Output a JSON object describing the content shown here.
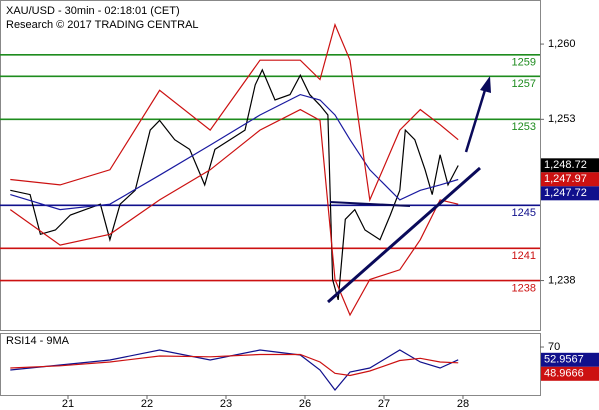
{
  "chart_data": {
    "type": "line",
    "title": "XAU/USD - 30min - 02:18:01 (CET)",
    "subtitle": "Research © 2017 TRADING CENTRAL",
    "xlim": [
      -0.861,
      5.975
    ],
    "xticks": [
      {
        "value": 0,
        "label": "21"
      },
      {
        "value": 1,
        "label": "22"
      },
      {
        "value": 2,
        "label": "23"
      },
      {
        "value": 3,
        "label": "26"
      },
      {
        "value": 4,
        "label": "27"
      },
      {
        "value": 5,
        "label": "28"
      }
    ],
    "ylim": [
      1233.4,
      1264.1
    ],
    "yticks": [
      {
        "value": 1260,
        "label": "1,260"
      },
      {
        "value": 1253,
        "label": "1,253"
      },
      {
        "value": 1238,
        "label": "1,238"
      }
    ],
    "series": [
      {
        "color": "#000000",
        "x": [
          -0.73,
          -0.48,
          -0.35,
          -0.16,
          0.03,
          0.22,
          0.41,
          0.53,
          0.66,
          0.85,
          1.04,
          1.16,
          1.35,
          1.54,
          1.73,
          1.86,
          2.05,
          2.24,
          2.37,
          2.46,
          2.62,
          2.81,
          2.94,
          3.06,
          3.19,
          3.29,
          3.35,
          3.42,
          3.51,
          3.63,
          3.76,
          3.95,
          4.08,
          4.2,
          4.27,
          4.39,
          4.52,
          4.61,
          4.71,
          4.81,
          4.94
        ],
        "values": [
          1246.4,
          1246.0,
          1242.3,
          1242.7,
          1244.1,
          1244.6,
          1245.1,
          1241.8,
          1245.1,
          1246.4,
          1252.0,
          1252.9,
          1251.1,
          1250.2,
          1246.9,
          1250.2,
          1251.1,
          1252.0,
          1256.2,
          1257.6,
          1254.8,
          1255.3,
          1257.1,
          1255.3,
          1254.3,
          1253.4,
          1238.1,
          1236.2,
          1243.7,
          1244.6,
          1242.7,
          1241.8,
          1244.1,
          1246.4,
          1252.0,
          1251.1,
          1248.3,
          1246.0,
          1249.7,
          1246.9,
          1248.7
        ]
      },
      {
        "color": "#1a1aa0",
        "x": [
          -0.73,
          -0.1,
          0.53,
          1.16,
          1.8,
          2.43,
          2.94,
          3.19,
          3.38,
          3.57,
          3.82,
          4.2,
          4.46,
          4.71,
          4.94
        ],
        "values": [
          1246.0,
          1244.6,
          1245.1,
          1247.8,
          1250.6,
          1253.4,
          1255.3,
          1254.8,
          1253.4,
          1251.1,
          1248.3,
          1245.5,
          1246.4,
          1246.9,
          1247.4
        ]
      },
      {
        "color": "#cc1111",
        "x": [
          -0.73,
          -0.1,
          0.53,
          1.16,
          1.8,
          2.43,
          2.94,
          3.19,
          3.38,
          3.57,
          3.82,
          4.2,
          4.46,
          4.71,
          4.94
        ],
        "values": [
          1247.4,
          1246.9,
          1248.3,
          1255.7,
          1252.0,
          1258.5,
          1258.5,
          1256.7,
          1261.8,
          1258.5,
          1245.5,
          1252.0,
          1253.9,
          1252.5,
          1251.1
        ]
      },
      {
        "color": "#cc1111",
        "x": [
          -0.73,
          -0.1,
          0.53,
          1.16,
          1.8,
          2.43,
          2.94,
          3.19,
          3.38,
          3.57,
          3.82,
          4.2,
          4.46,
          4.71,
          4.94
        ],
        "values": [
          1244.6,
          1241.3,
          1242.3,
          1245.5,
          1248.3,
          1252.0,
          1253.9,
          1252.9,
          1238.1,
          1234.8,
          1238.1,
          1239.0,
          1241.8,
          1245.5,
          1245.1
        ]
      }
    ],
    "levels": [
      {
        "value": 1259,
        "color": "#1e8c1e"
      },
      {
        "value": 1257,
        "color": "#1e8c1e"
      },
      {
        "value": 1253,
        "color": "#1e8c1e"
      },
      {
        "value": 1245,
        "color": "#10108c"
      },
      {
        "value": 1241,
        "color": "#cc1111"
      },
      {
        "value": 1238,
        "color": "#cc1111"
      }
    ],
    "price_tags": [
      {
        "value": 1248.72,
        "label": "1,248.72",
        "color": "#000000"
      },
      {
        "value": 1247.97,
        "label": "1,247.97",
        "color": "#cc1111"
      },
      {
        "value": 1247.72,
        "label": "1,247.72",
        "color": "#10108c"
      }
    ],
    "rsi": {
      "title": "RSI14 - 9MA",
      "ylim": [
        6,
        88.7
      ],
      "yticks": [
        70
      ],
      "series": [
        {
          "color": "#10108c",
          "x": [
            -0.73,
            -0.1,
            0.53,
            1.16,
            1.8,
            2.43,
            2.94,
            3.19,
            3.38,
            3.57,
            3.82,
            4.2,
            4.46,
            4.71,
            4.94
          ],
          "values": [
            39.3,
            46,
            52.7,
            66,
            52.7,
            66,
            59.3,
            39.3,
            12.7,
            36.7,
            42,
            66,
            50,
            42,
            53
          ]
        },
        {
          "color": "#cc1111",
          "x": [
            -0.73,
            -0.1,
            0.53,
            1.16,
            1.8,
            2.43,
            2.94,
            3.19,
            3.38,
            3.57,
            3.82,
            4.2,
            4.46,
            4.71,
            4.94
          ],
          "values": [
            42,
            45,
            50,
            58,
            57,
            60,
            60,
            50,
            35,
            32,
            38,
            52,
            55,
            50,
            49
          ]
        }
      ],
      "tags": [
        {
          "value": 52.9567,
          "color": "#10108c"
        },
        {
          "value": 48.9666,
          "color": "#cc1111"
        }
      ]
    }
  }
}
